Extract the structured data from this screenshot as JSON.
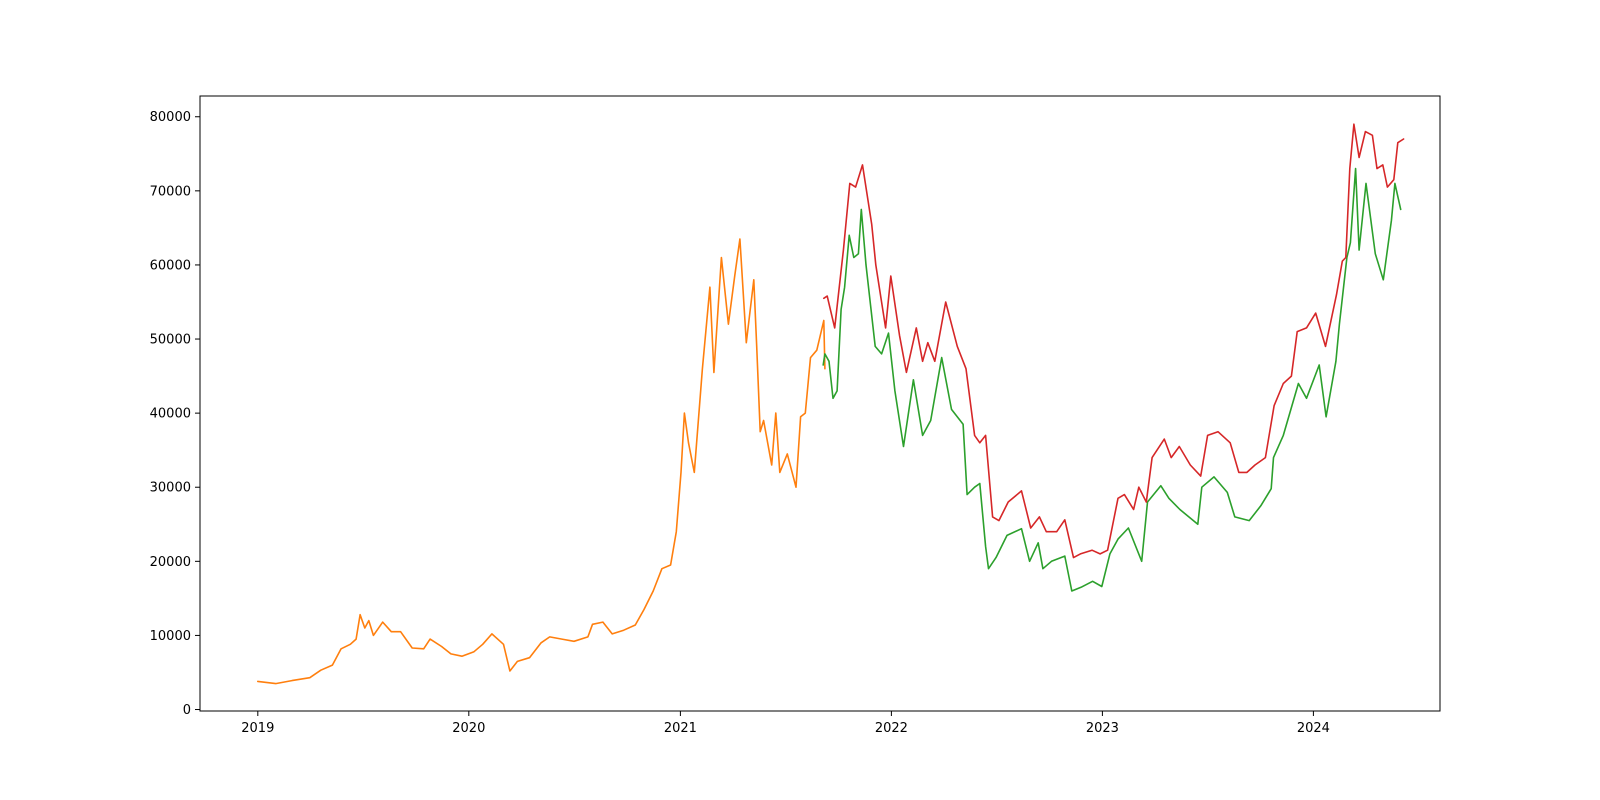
{
  "chart_data": {
    "type": "line",
    "title": "",
    "xlabel": "",
    "ylabel": "",
    "xlim": [
      "2018-09-23",
      "2024-08-07"
    ],
    "ylim": [
      -200,
      82800
    ],
    "grid": false,
    "x_tick_labels": [
      "2019",
      "2020",
      "2021",
      "2022",
      "2023",
      "2024"
    ],
    "x_tick_values": [
      "2019-01-01",
      "2020-01-01",
      "2021-01-01",
      "2022-01-01",
      "2023-01-01",
      "2024-01-01"
    ],
    "y_tick_labels": [
      "0",
      "10000",
      "20000",
      "30000",
      "40000",
      "50000",
      "60000",
      "70000",
      "80000"
    ],
    "y_tick_values": [
      0,
      10000,
      20000,
      30000,
      40000,
      50000,
      60000,
      70000,
      80000
    ],
    "series": [
      {
        "color": "#ff7f0e",
        "points": [
          [
            "2019-01-01",
            3800
          ],
          [
            "2019-02-01",
            3500
          ],
          [
            "2019-03-01",
            3900
          ],
          [
            "2019-04-01",
            4300
          ],
          [
            "2019-04-20",
            5300
          ],
          [
            "2019-05-10",
            6000
          ],
          [
            "2019-05-25",
            8200
          ],
          [
            "2019-06-10",
            8800
          ],
          [
            "2019-06-20",
            9500
          ],
          [
            "2019-06-27",
            12800
          ],
          [
            "2019-07-05",
            11000
          ],
          [
            "2019-07-12",
            12000
          ],
          [
            "2019-07-20",
            10000
          ],
          [
            "2019-08-05",
            11800
          ],
          [
            "2019-08-20",
            10500
          ],
          [
            "2019-09-05",
            10500
          ],
          [
            "2019-09-25",
            8300
          ],
          [
            "2019-10-15",
            8200
          ],
          [
            "2019-10-26",
            9500
          ],
          [
            "2019-11-15",
            8500
          ],
          [
            "2019-12-01",
            7500
          ],
          [
            "2019-12-20",
            7200
          ],
          [
            "2020-01-10",
            7800
          ],
          [
            "2020-01-25",
            8800
          ],
          [
            "2020-02-10",
            10200
          ],
          [
            "2020-03-01",
            8800
          ],
          [
            "2020-03-12",
            5200
          ],
          [
            "2020-03-25",
            6500
          ],
          [
            "2020-04-15",
            7000
          ],
          [
            "2020-05-05",
            9000
          ],
          [
            "2020-05-20",
            9800
          ],
          [
            "2020-06-10",
            9500
          ],
          [
            "2020-07-01",
            9200
          ],
          [
            "2020-07-25",
            9800
          ],
          [
            "2020-08-02",
            11500
          ],
          [
            "2020-08-20",
            11800
          ],
          [
            "2020-09-05",
            10200
          ],
          [
            "2020-09-25",
            10700
          ],
          [
            "2020-10-15",
            11400
          ],
          [
            "2020-10-30",
            13500
          ],
          [
            "2020-11-15",
            16000
          ],
          [
            "2020-11-30",
            19000
          ],
          [
            "2020-12-15",
            19500
          ],
          [
            "2020-12-25",
            24000
          ],
          [
            "2021-01-02",
            32000
          ],
          [
            "2021-01-08",
            40000
          ],
          [
            "2021-01-15",
            36000
          ],
          [
            "2021-01-25",
            32000
          ],
          [
            "2021-02-08",
            46000
          ],
          [
            "2021-02-21",
            57000
          ],
          [
            "2021-02-28",
            45500
          ],
          [
            "2021-03-13",
            61000
          ],
          [
            "2021-03-25",
            52000
          ],
          [
            "2021-04-05",
            58500
          ],
          [
            "2021-04-14",
            63500
          ],
          [
            "2021-04-25",
            49500
          ],
          [
            "2021-05-08",
            58000
          ],
          [
            "2021-05-13",
            49000
          ],
          [
            "2021-05-19",
            37500
          ],
          [
            "2021-05-25",
            39000
          ],
          [
            "2021-06-08",
            33000
          ],
          [
            "2021-06-15",
            40000
          ],
          [
            "2021-06-22",
            32000
          ],
          [
            "2021-07-05",
            34500
          ],
          [
            "2021-07-20",
            30000
          ],
          [
            "2021-07-28",
            39500
          ],
          [
            "2021-08-05",
            40000
          ],
          [
            "2021-08-14",
            47500
          ],
          [
            "2021-08-25",
            48500
          ],
          [
            "2021-09-06",
            52500
          ],
          [
            "2021-09-08",
            46000
          ]
        ]
      },
      {
        "color": "#2ca02c",
        "points": [
          [
            "2021-09-05",
            46500
          ],
          [
            "2021-09-08",
            48000
          ],
          [
            "2021-09-15",
            47000
          ],
          [
            "2021-09-22",
            42000
          ],
          [
            "2021-09-29",
            43000
          ],
          [
            "2021-10-06",
            54000
          ],
          [
            "2021-10-12",
            57000
          ],
          [
            "2021-10-20",
            64000
          ],
          [
            "2021-10-28",
            61000
          ],
          [
            "2021-11-05",
            61500
          ],
          [
            "2021-11-10",
            67500
          ],
          [
            "2021-11-18",
            60000
          ],
          [
            "2021-11-26",
            54500
          ],
          [
            "2021-12-04",
            49000
          ],
          [
            "2021-12-15",
            48000
          ],
          [
            "2021-12-27",
            50800
          ],
          [
            "2022-01-07",
            43000
          ],
          [
            "2022-01-22",
            35500
          ],
          [
            "2022-02-08",
            44500
          ],
          [
            "2022-02-24",
            37000
          ],
          [
            "2022-03-10",
            39000
          ],
          [
            "2022-03-29",
            47500
          ],
          [
            "2022-04-15",
            40500
          ],
          [
            "2022-05-05",
            38500
          ],
          [
            "2022-05-12",
            29000
          ],
          [
            "2022-05-25",
            30000
          ],
          [
            "2022-06-03",
            30500
          ],
          [
            "2022-06-13",
            22000
          ],
          [
            "2022-06-18",
            19000
          ],
          [
            "2022-07-01",
            20500
          ],
          [
            "2022-07-20",
            23500
          ],
          [
            "2022-08-14",
            24400
          ],
          [
            "2022-08-28",
            20000
          ],
          [
            "2022-09-12",
            22500
          ],
          [
            "2022-09-20",
            19000
          ],
          [
            "2022-10-05",
            20000
          ],
          [
            "2022-10-28",
            20700
          ],
          [
            "2022-11-09",
            16000
          ],
          [
            "2022-11-25",
            16500
          ],
          [
            "2022-12-15",
            17300
          ],
          [
            "2022-12-31",
            16600
          ],
          [
            "2023-01-14",
            21000
          ],
          [
            "2023-01-28",
            23000
          ],
          [
            "2023-02-15",
            24500
          ],
          [
            "2023-03-10",
            20000
          ],
          [
            "2023-03-20",
            28000
          ],
          [
            "2023-04-12",
            30200
          ],
          [
            "2023-04-26",
            28500
          ],
          [
            "2023-05-15",
            27000
          ],
          [
            "2023-06-15",
            25000
          ],
          [
            "2023-06-22",
            30000
          ],
          [
            "2023-07-13",
            31400
          ],
          [
            "2023-08-05",
            29300
          ],
          [
            "2023-08-18",
            26000
          ],
          [
            "2023-09-12",
            25500
          ],
          [
            "2023-10-02",
            27500
          ],
          [
            "2023-10-20",
            29800
          ],
          [
            "2023-10-24",
            34000
          ],
          [
            "2023-11-10",
            37000
          ],
          [
            "2023-12-06",
            44000
          ],
          [
            "2023-12-20",
            42000
          ],
          [
            "2024-01-11",
            46500
          ],
          [
            "2024-01-23",
            39500
          ],
          [
            "2024-02-09",
            47000
          ],
          [
            "2024-02-15",
            52000
          ],
          [
            "2024-02-28",
            61000
          ],
          [
            "2024-03-05",
            63000
          ],
          [
            "2024-03-14",
            73000
          ],
          [
            "2024-03-20",
            62000
          ],
          [
            "2024-04-01",
            71000
          ],
          [
            "2024-04-17",
            61500
          ],
          [
            "2024-05-01",
            58000
          ],
          [
            "2024-05-15",
            66000
          ],
          [
            "2024-05-21",
            71000
          ],
          [
            "2024-05-31",
            67500
          ]
        ]
      },
      {
        "color": "#d62728",
        "points": [
          [
            "2021-09-06",
            55500
          ],
          [
            "2021-09-12",
            55800
          ],
          [
            "2021-09-25",
            51500
          ],
          [
            "2021-10-10",
            62000
          ],
          [
            "2021-10-21",
            71000
          ],
          [
            "2021-10-31",
            70500
          ],
          [
            "2021-11-12",
            73500
          ],
          [
            "2021-11-28",
            65500
          ],
          [
            "2021-12-05",
            60000
          ],
          [
            "2021-12-22",
            51500
          ],
          [
            "2021-12-31",
            58500
          ],
          [
            "2022-01-15",
            50500
          ],
          [
            "2022-01-27",
            45500
          ],
          [
            "2022-02-13",
            51500
          ],
          [
            "2022-02-24",
            47000
          ],
          [
            "2022-03-05",
            49500
          ],
          [
            "2022-03-17",
            47000
          ],
          [
            "2022-04-05",
            55000
          ],
          [
            "2022-04-25",
            49000
          ],
          [
            "2022-05-10",
            46000
          ],
          [
            "2022-05-25",
            37000
          ],
          [
            "2022-06-03",
            36000
          ],
          [
            "2022-06-13",
            37000
          ],
          [
            "2022-06-25",
            26000
          ],
          [
            "2022-07-06",
            25500
          ],
          [
            "2022-07-22",
            28000
          ],
          [
            "2022-08-14",
            29500
          ],
          [
            "2022-08-30",
            24500
          ],
          [
            "2022-09-14",
            26000
          ],
          [
            "2022-09-26",
            24000
          ],
          [
            "2022-10-14",
            24000
          ],
          [
            "2022-10-28",
            25600
          ],
          [
            "2022-11-12",
            20500
          ],
          [
            "2022-11-24",
            21000
          ],
          [
            "2022-12-14",
            21500
          ],
          [
            "2022-12-28",
            21000
          ],
          [
            "2023-01-10",
            21500
          ],
          [
            "2023-01-28",
            28500
          ],
          [
            "2023-02-08",
            29000
          ],
          [
            "2023-02-24",
            27000
          ],
          [
            "2023-03-05",
            30000
          ],
          [
            "2023-03-18",
            28000
          ],
          [
            "2023-03-28",
            34000
          ],
          [
            "2023-04-18",
            36500
          ],
          [
            "2023-04-30",
            34000
          ],
          [
            "2023-05-14",
            35500
          ],
          [
            "2023-06-02",
            33000
          ],
          [
            "2023-06-20",
            31500
          ],
          [
            "2023-07-02",
            37000
          ],
          [
            "2023-07-20",
            37500
          ],
          [
            "2023-08-10",
            36000
          ],
          [
            "2023-08-25",
            32000
          ],
          [
            "2023-09-08",
            32000
          ],
          [
            "2023-09-22",
            33000
          ],
          [
            "2023-10-10",
            34000
          ],
          [
            "2023-10-25",
            41000
          ],
          [
            "2023-11-10",
            44000
          ],
          [
            "2023-11-24",
            45000
          ],
          [
            "2023-12-04",
            51000
          ],
          [
            "2023-12-20",
            51500
          ],
          [
            "2024-01-05",
            53500
          ],
          [
            "2024-01-22",
            49000
          ],
          [
            "2024-02-10",
            56000
          ],
          [
            "2024-02-20",
            60500
          ],
          [
            "2024-02-26",
            61000
          ],
          [
            "2024-03-04",
            73000
          ],
          [
            "2024-03-11",
            79000
          ],
          [
            "2024-03-20",
            74500
          ],
          [
            "2024-03-31",
            78000
          ],
          [
            "2024-04-12",
            77500
          ],
          [
            "2024-04-20",
            73000
          ],
          [
            "2024-04-30",
            73500
          ],
          [
            "2024-05-08",
            70500
          ],
          [
            "2024-05-19",
            71500
          ],
          [
            "2024-05-26",
            76500
          ],
          [
            "2024-06-05",
            77000
          ]
        ]
      }
    ]
  }
}
